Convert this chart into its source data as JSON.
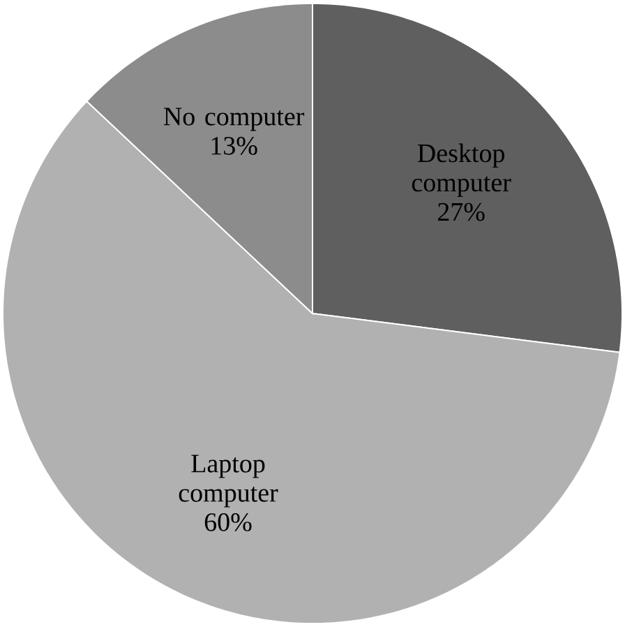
{
  "chart_data": {
    "type": "pie",
    "categories": [
      "Desktop computer",
      "Laptop computer",
      "No computer"
    ],
    "values": [
      27,
      60,
      13
    ],
    "value_labels": [
      "27%",
      "60%",
      "13%"
    ],
    "colors": [
      "#5f5f5f",
      "#b1b1b1",
      "#8c8c8c"
    ]
  }
}
